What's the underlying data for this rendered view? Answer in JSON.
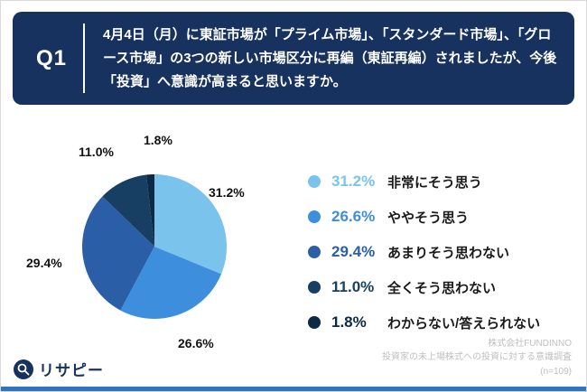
{
  "header": {
    "q_label": "Q1",
    "question": "4月4日（月）に東証市場が「プライム市場」、「スタンダード市場」、「グロース市場」の3つの新しい市場区分に再編（東証再編）されましたが、今後「投資」へ意識が高まると思いますか。"
  },
  "chart_data": {
    "type": "pie",
    "title": "今後「投資」へ意識が高まると思いますか",
    "start_angle_deg": -90,
    "direction": "clockwise",
    "legend_position": "right",
    "slices": [
      {
        "label": "非常にそう思う",
        "value": 31.2,
        "pct": "31.2%",
        "color": "#79C3EC"
      },
      {
        "label": "ややそう思う",
        "value": 26.6,
        "pct": "26.6%",
        "color": "#3D8EDC"
      },
      {
        "label": "あまりそう思わない",
        "value": 29.4,
        "pct": "29.4%",
        "color": "#2A5FA7"
      },
      {
        "label": "全くそう思わない",
        "value": 11.0,
        "pct": "11.0%",
        "color": "#173F63"
      },
      {
        "label": "わからない/答えられない",
        "value": 1.8,
        "pct": "1.8%",
        "color": "#0C2A45"
      }
    ]
  },
  "footer": {
    "logo_text": "リサピー",
    "source_lines": [
      "株式会社FUNDINNO",
      "投資家の未上場株式への投資に対する意識調査",
      "(n=109)"
    ]
  }
}
